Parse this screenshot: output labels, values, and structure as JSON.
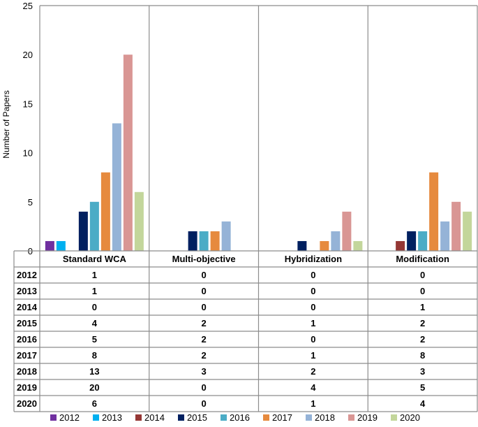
{
  "chart_data": {
    "type": "bar",
    "categories": [
      "Standard WCA",
      "Multi-objective",
      "Hybridization",
      "Modification"
    ],
    "ylabel": "Number of Papers",
    "ylim": [
      0,
      25
    ],
    "yticks": [
      0,
      5,
      10,
      15,
      20,
      25
    ],
    "grid": false,
    "legend_position": "bottom",
    "series": [
      {
        "name": "2012",
        "color": "#7030a0",
        "values": [
          1,
          0,
          0,
          0
        ]
      },
      {
        "name": "2013",
        "color": "#00b0f0",
        "values": [
          1,
          0,
          0,
          0
        ]
      },
      {
        "name": "2014",
        "color": "#953735",
        "values": [
          0,
          0,
          0,
          1
        ]
      },
      {
        "name": "2015",
        "color": "#002060",
        "values": [
          4,
          2,
          1,
          2
        ]
      },
      {
        "name": "2016",
        "color": "#4bacc6",
        "values": [
          5,
          2,
          0,
          2
        ]
      },
      {
        "name": "2017",
        "color": "#e68a3e",
        "values": [
          8,
          2,
          1,
          8
        ]
      },
      {
        "name": "2018",
        "color": "#95b3d7",
        "values": [
          13,
          3,
          2,
          3
        ]
      },
      {
        "name": "2019",
        "color": "#d99694",
        "values": [
          20,
          0,
          4,
          5
        ]
      },
      {
        "name": "2020",
        "color": "#c3d69b",
        "values": [
          6,
          0,
          1,
          4
        ]
      }
    ]
  }
}
